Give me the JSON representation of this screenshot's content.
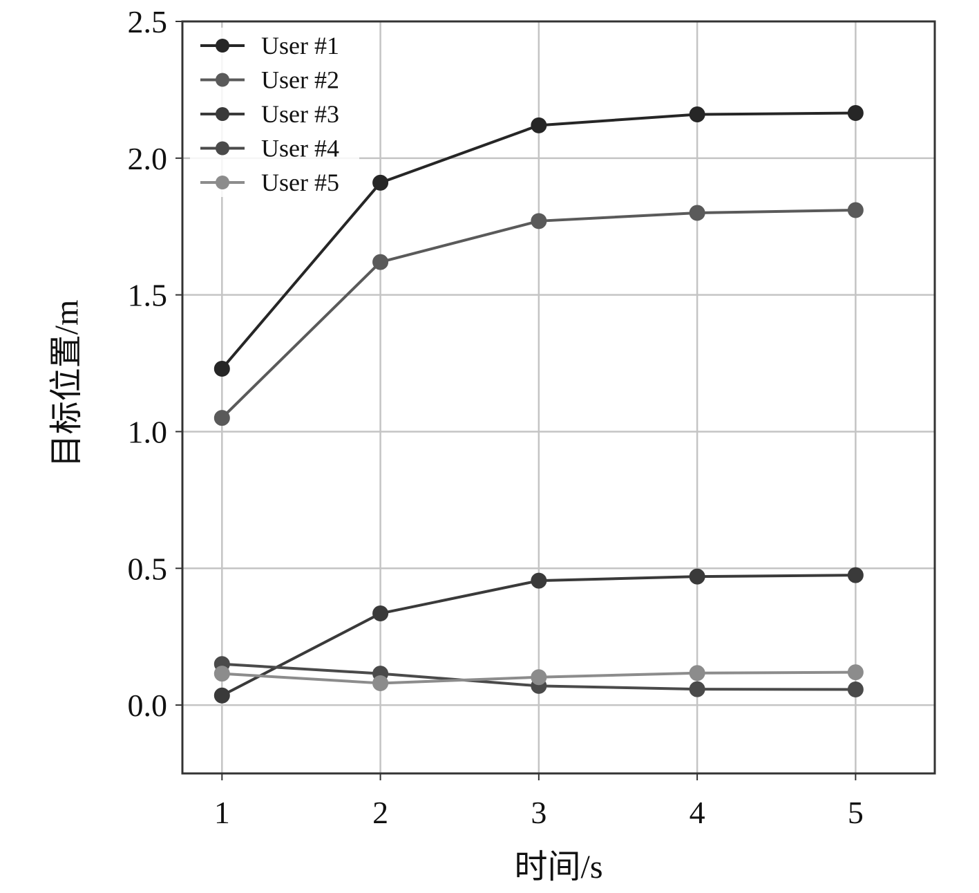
{
  "chart_data": {
    "type": "line",
    "title": "",
    "xlabel": "时间/s",
    "ylabel": "目标位置/m",
    "x": [
      1,
      2,
      3,
      4,
      5
    ],
    "xticks": [
      "1",
      "2",
      "3",
      "4",
      "5"
    ],
    "yticks": [
      "0.0",
      "0.5",
      "1.0",
      "1.5",
      "2.0",
      "2.5"
    ],
    "xlim": [
      0.75,
      5.5
    ],
    "ylim": [
      -0.25,
      2.5
    ],
    "grid": true,
    "legend_position": "top-left",
    "series": [
      {
        "name": "User #1",
        "color": "#262626",
        "values": [
          1.23,
          1.91,
          2.12,
          2.16,
          2.165
        ]
      },
      {
        "name": "User #2",
        "color": "#5a5a5a",
        "values": [
          1.05,
          1.62,
          1.77,
          1.8,
          1.81
        ]
      },
      {
        "name": "User #3",
        "color": "#3a3a3a",
        "values": [
          0.035,
          0.335,
          0.455,
          0.47,
          0.475
        ]
      },
      {
        "name": "User #4",
        "color": "#4a4a4a",
        "values": [
          0.15,
          0.115,
          0.07,
          0.058,
          0.057
        ]
      },
      {
        "name": "User #5",
        "color": "#8c8c8c",
        "values": [
          0.115,
          0.08,
          0.102,
          0.117,
          0.12
        ]
      }
    ]
  }
}
